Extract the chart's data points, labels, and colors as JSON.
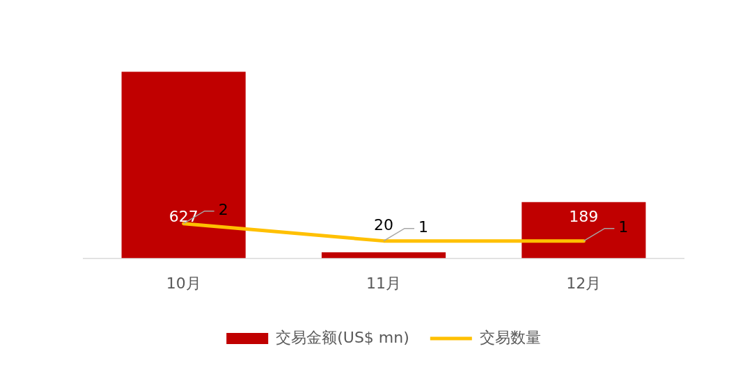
{
  "chart_data": {
    "type": "bar",
    "categories": [
      "10月",
      "11月",
      "12月"
    ],
    "series": [
      {
        "name": "交易金额(US$ mn)",
        "color": "#c00000",
        "values": [
          627,
          20,
          189
        ]
      },
      {
        "name": "交易数量",
        "type": "line",
        "axis": "y2",
        "color": "#ffc000",
        "values": [
          2,
          1,
          1
        ]
      }
    ],
    "data_labels": true,
    "legend": "bottom",
    "grid": false,
    "tick_labels": "x",
    "marker": "none"
  }
}
